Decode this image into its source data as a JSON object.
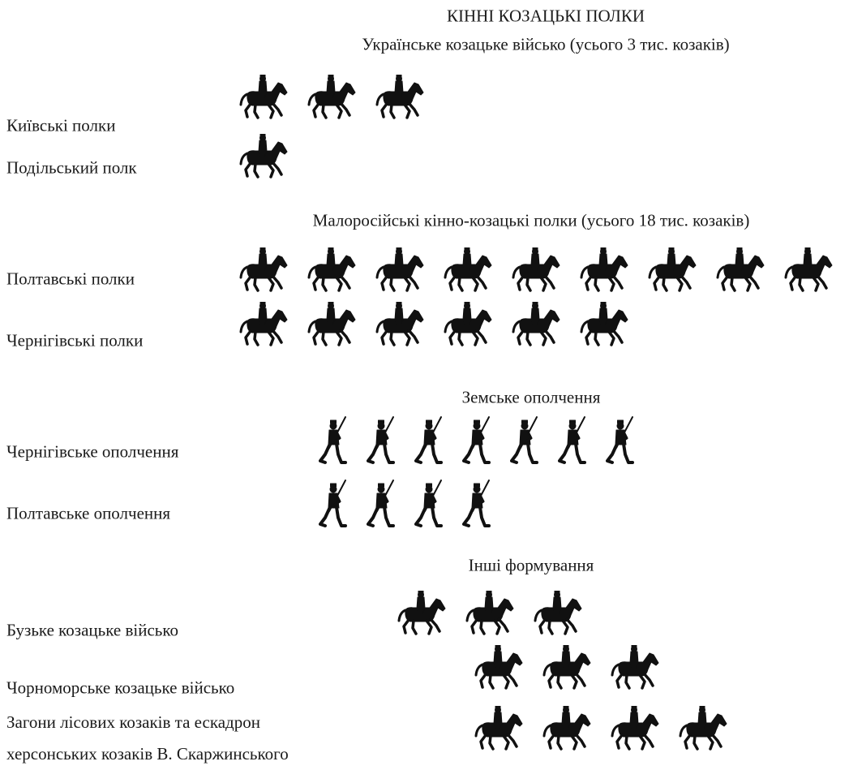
{
  "chart_data": {
    "type": "pictograph",
    "title": "КІННІ КОЗАЦЬКІ ПОЛКИ",
    "sections": [
      {
        "title": "Українське козацьке військо (усього 3 тис. козаків)",
        "icon": "horseman",
        "categories": [
          "Київські полки",
          "Подільський полк"
        ],
        "values": [
          3,
          1
        ]
      },
      {
        "title": "Малоросійські кінно-козацькі полки (усього 18 тис. козаків)",
        "icon": "horseman",
        "categories": [
          "Полтавські полки",
          "Чернігівські полки"
        ],
        "values": [
          9,
          6
        ]
      },
      {
        "title": "Земське ополчення",
        "icon": "infantry",
        "categories": [
          "Чернігівське ополчення",
          "Полтавське ополчення"
        ],
        "values": [
          7,
          4
        ]
      },
      {
        "title": "Інші формування",
        "icon": "horseman",
        "categories": [
          "Бузьке козацьке військо",
          "Чорноморське козацьке військо",
          "Загони лісових козаків та ескадрон херсонських козаків В. Скаржинського"
        ],
        "values": [
          3,
          3,
          4
        ]
      }
    ]
  }
}
